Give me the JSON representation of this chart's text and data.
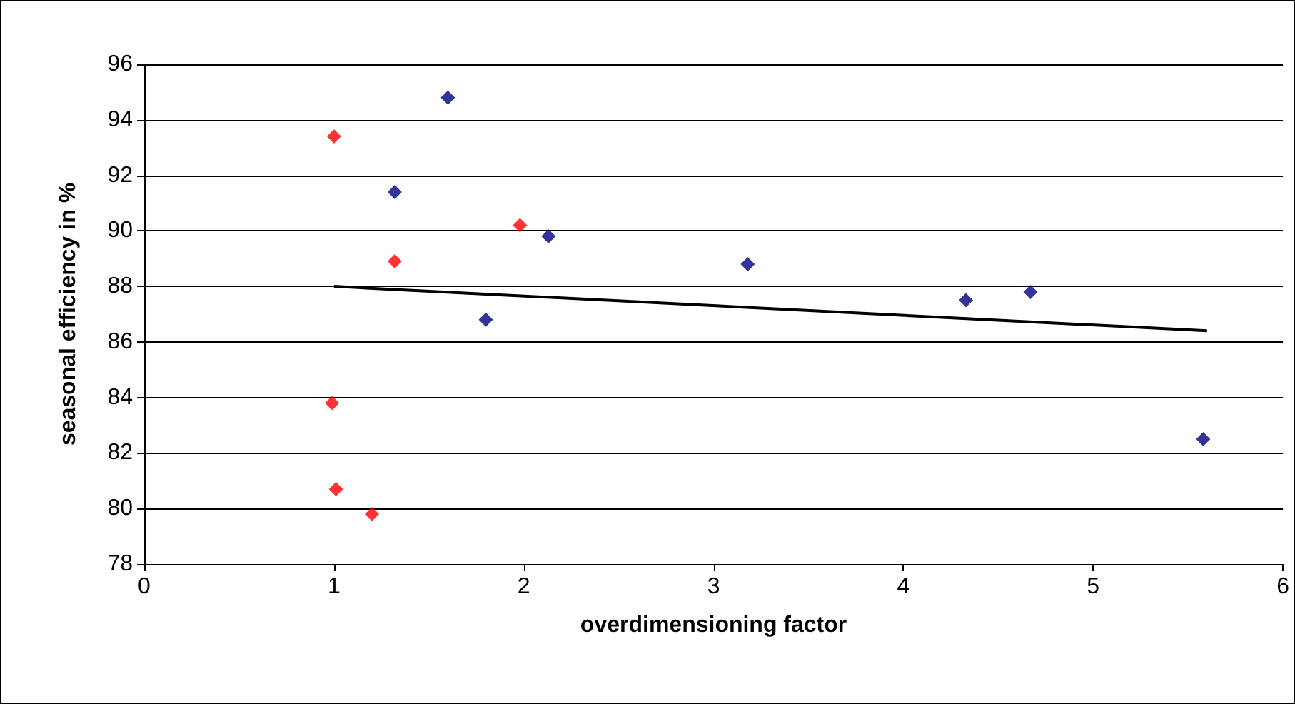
{
  "chart_data": {
    "type": "scatter",
    "xlabel": "overdimensioning factor",
    "ylabel": "seasonal efficiency in %",
    "xlim": [
      0,
      6
    ],
    "xticks": [
      0,
      1,
      2,
      3,
      4,
      5,
      6
    ],
    "ylim": [
      78,
      96
    ],
    "yticks": [
      78,
      80,
      82,
      84,
      86,
      88,
      90,
      92,
      94,
      96
    ],
    "grid": "y",
    "marker": "diamond",
    "series": [
      {
        "color": "#ff0000",
        "x": [
          1.0,
          1.32,
          1.98,
          0.99,
          1.01,
          1.2
        ],
        "values": [
          93.4,
          88.9,
          90.2,
          83.8,
          80.7,
          79.8
        ]
      },
      {
        "color": "#000080",
        "x": [
          1.6,
          1.32,
          2.13,
          1.8,
          3.18,
          4.33,
          4.67,
          5.58
        ],
        "values": [
          94.8,
          91.4,
          89.8,
          86.8,
          88.8,
          87.5,
          87.8,
          82.5
        ]
      },
      {
        "type": "line",
        "color": "#000000",
        "marker": "none",
        "x": [
          1.0,
          5.6
        ],
        "values": [
          88.0,
          86.4
        ]
      }
    ]
  }
}
